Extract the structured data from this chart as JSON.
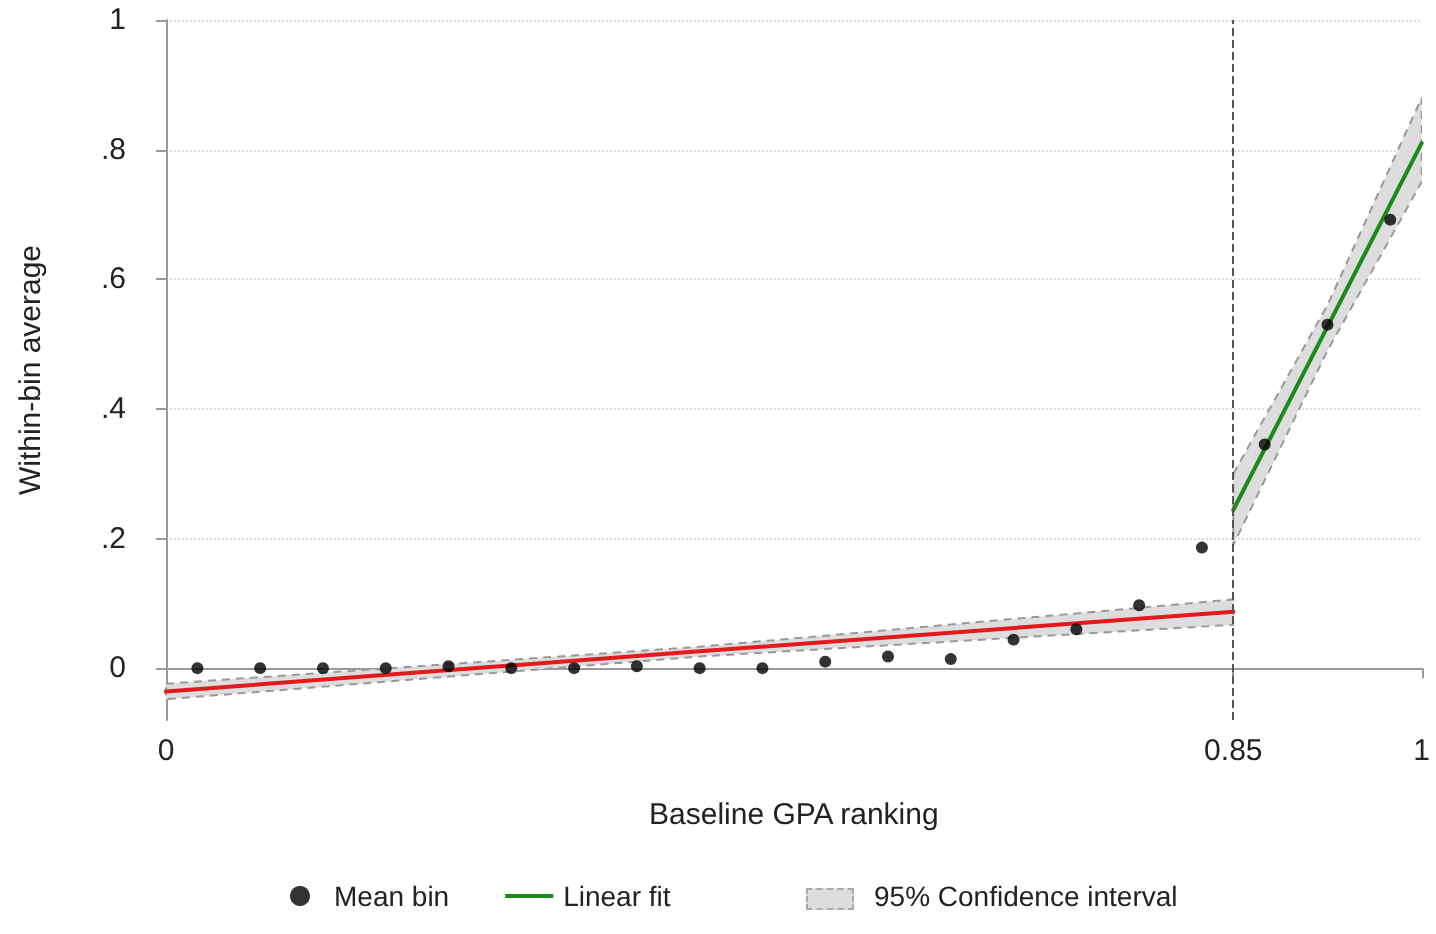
{
  "chart_data": {
    "type": "scatter",
    "xlabel": "Baseline GPA ranking",
    "ylabel": "Within-bin average",
    "xlim": [
      0,
      1
    ],
    "xticks": [
      0,
      0.85,
      1
    ],
    "ylim": [
      -0.08,
      1
    ],
    "yticks": [
      {
        "value": 0,
        "label": "0"
      },
      {
        "value": 0.2,
        "label": ".2"
      },
      {
        "value": 0.4,
        "label": ".4"
      },
      {
        "value": 0.6,
        "label": ".6"
      },
      {
        "value": 0.8,
        "label": ".8"
      },
      {
        "value": 1,
        "label": "1"
      }
    ],
    "grid": "y",
    "legend": "bottom",
    "annotations": [
      "95% Confidence interval"
    ],
    "ref_lines": [
      {
        "axis": "x",
        "value": 0.85,
        "color": "#555555",
        "line_style": "dashed"
      }
    ],
    "series": [
      {
        "name": "Mean bin",
        "color": "#000000",
        "marker": "circle",
        "x": [
          0.025,
          0.075,
          0.125,
          0.175,
          0.225,
          0.275,
          0.325,
          0.375,
          0.425,
          0.475,
          0.525,
          0.575,
          0.625,
          0.675,
          0.725,
          0.775,
          0.825,
          0.875,
          0.925,
          0.975
        ],
        "values": [
          0,
          0,
          0,
          0,
          0.003,
          0,
          0,
          0.003,
          0,
          0,
          0.01,
          0.018,
          0.014,
          0.044,
          0.06,
          0.097,
          0.186,
          0.345,
          0.53,
          0.692
        ]
      },
      {
        "type": "line",
        "name": "Linear fit",
        "color": "#1a8a1a",
        "marker": "none",
        "line_style": "solid",
        "x": [
          0.85,
          0.925,
          1
        ],
        "values": [
          0.244,
          0.527,
          0.81
        ],
        "lower": [
          0.19,
          0.49,
          0.75
        ],
        "upper": [
          0.3,
          0.56,
          0.88
        ]
      },
      {
        "type": "line",
        "color": "#e41a1c",
        "marker": "none",
        "line_style": "solid",
        "x": [
          0,
          0.425,
          0.85
        ],
        "values": [
          -0.036,
          0.026,
          0.087
        ],
        "lower": [
          -0.048,
          0.018,
          0.067
        ],
        "upper": [
          -0.024,
          0.033,
          0.106
        ]
      }
    ]
  }
}
